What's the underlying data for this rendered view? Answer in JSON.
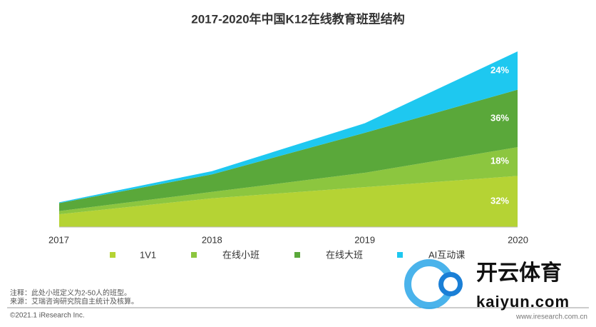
{
  "chart_data": {
    "type": "stacked_area",
    "title": "2017-2020年中国K12在线教育班型结构",
    "x": [
      "2017",
      "2018",
      "2019",
      "2020"
    ],
    "series": [
      {
        "name": "1V1",
        "color": "#b5d334",
        "values": [
          8,
          18,
          25,
          32
        ],
        "value_labels": [
          null,
          null,
          null,
          "32%"
        ]
      },
      {
        "name": "在线小班",
        "color": "#8cc63f",
        "values": [
          2,
          4,
          9,
          18
        ],
        "value_labels": [
          null,
          null,
          null,
          "18%"
        ]
      },
      {
        "name": "在线大班",
        "color": "#5aa83a",
        "values": [
          5,
          11,
          25,
          36
        ],
        "value_labels": [
          null,
          null,
          null,
          "36%"
        ]
      },
      {
        "name": "AI互动课",
        "color": "#1ec8f0",
        "values": [
          0.5,
          2,
          6,
          24
        ],
        "value_labels": [
          null,
          null,
          null,
          "24%"
        ]
      }
    ],
    "notes": [
      "注释：此处小班定义为2-50人的班型。",
      "来源：艾瑞咨询研究院自主统计及核算。"
    ],
    "copyright": "©2021.1 iResearch Inc.",
    "watermark": {
      "brand": "开云体育",
      "site": "kaiyun.com",
      "source_site": "www.iresearch.com.cn"
    }
  }
}
